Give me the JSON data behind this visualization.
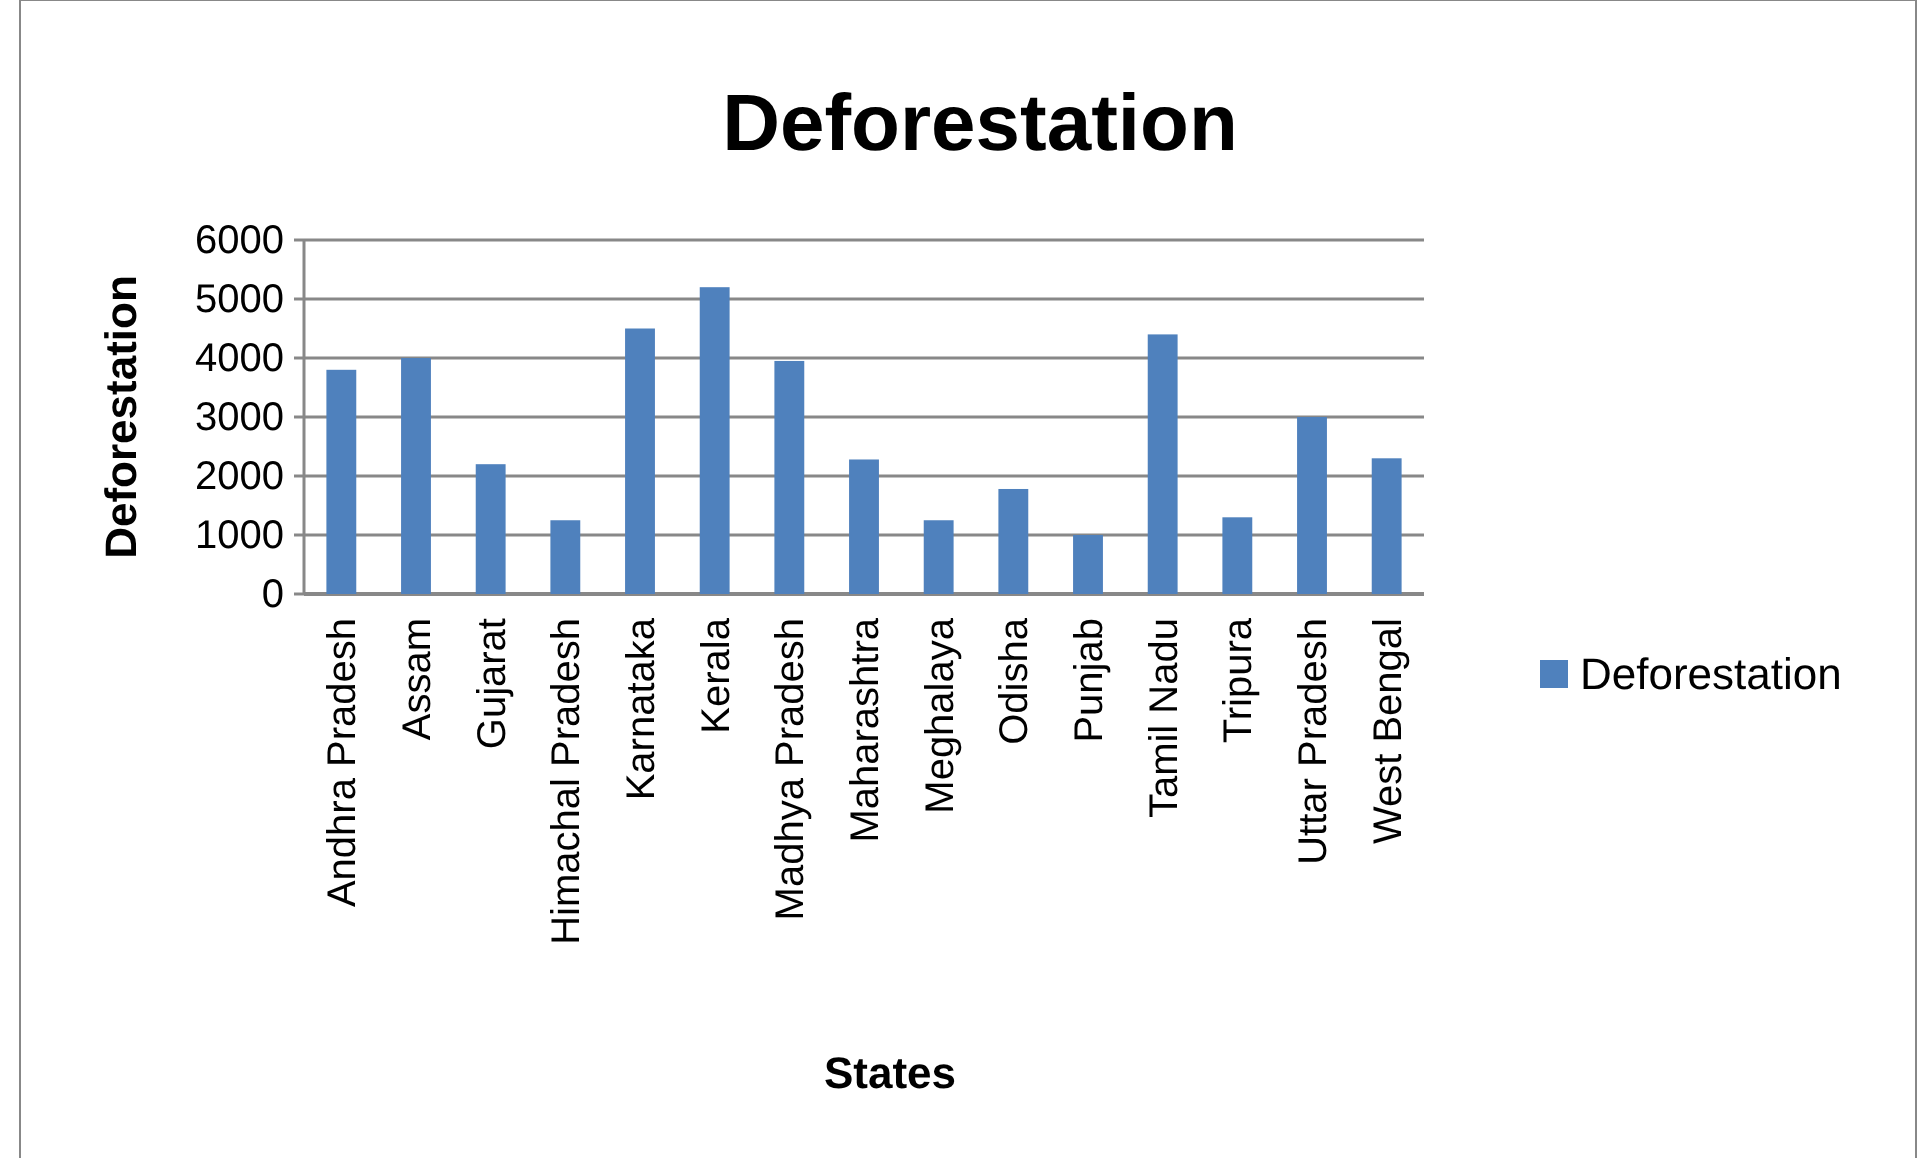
{
  "chart_data": {
    "type": "bar",
    "title": "Deforestation",
    "xlabel": "States",
    "ylabel": "Deforestation",
    "categories": [
      "Andhra Pradesh",
      "Assam",
      "Gujarat",
      "Himachal Pradesh",
      "Karnataka",
      "Kerala",
      "Madhya Pradesh",
      "Maharashtra",
      "Meghalaya",
      "Odisha",
      "Punjab",
      "Tamil Nadu",
      "Tripura",
      "Uttar Pradesh",
      "West Bengal"
    ],
    "series": [
      {
        "name": "Deforestation",
        "color": "#4f81bd",
        "values": [
          3800,
          4000,
          2200,
          1250,
          4500,
          5200,
          3950,
          2280,
          1250,
          1780,
          1000,
          4400,
          1300,
          3000,
          2300
        ]
      }
    ],
    "ylim": [
      0,
      6000
    ],
    "yticks": [
      0,
      1000,
      2000,
      3000,
      4000,
      5000,
      6000
    ],
    "grid": "y",
    "legend": "right"
  }
}
